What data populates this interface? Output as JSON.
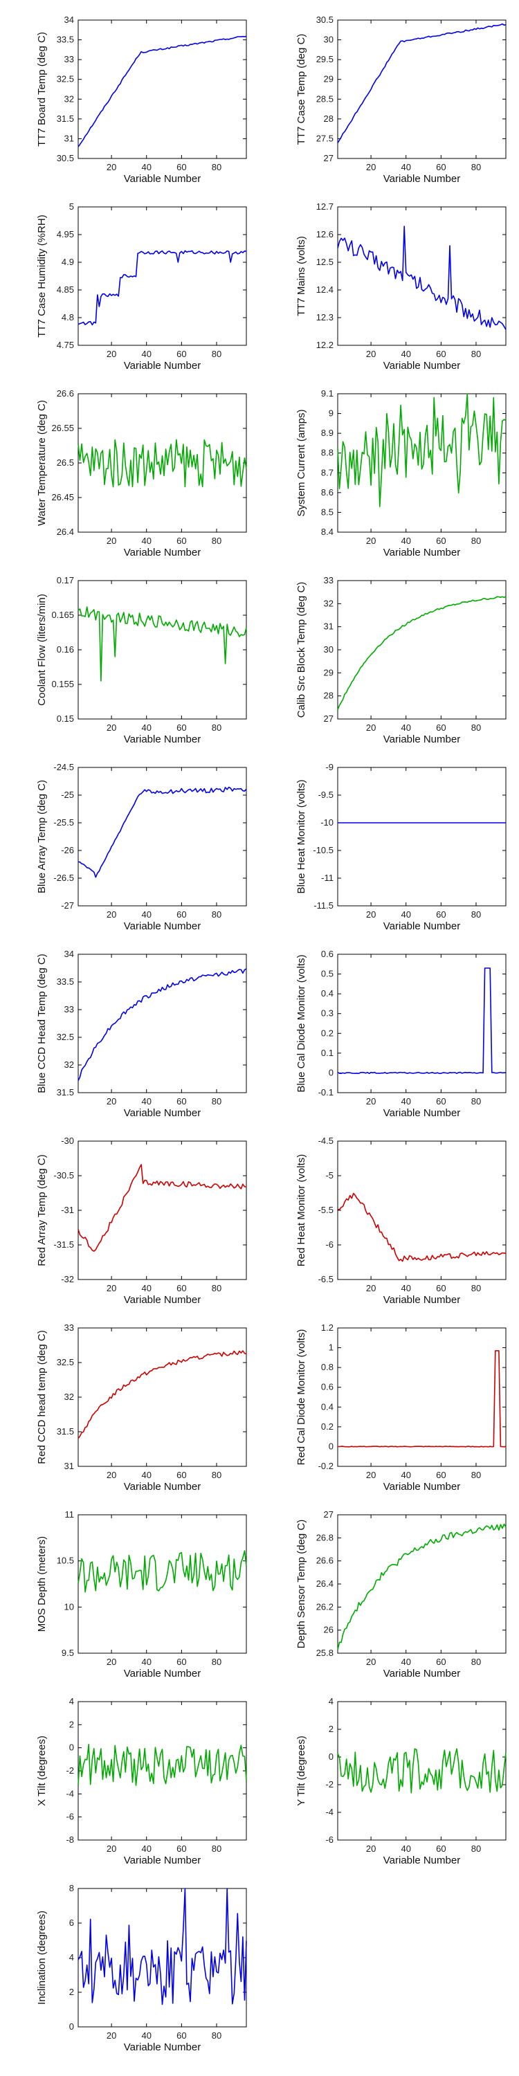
{
  "chart_data": [
    {
      "type": "line",
      "ylabel": "TT7 Board Temp (deg C)",
      "xlabel": "Variable Number",
      "xlim": [
        1,
        97
      ],
      "ylim": [
        30.5,
        34
      ],
      "yticks": [
        30.5,
        31,
        31.5,
        32,
        32.5,
        33,
        33.5,
        34
      ],
      "xticks": [
        20,
        40,
        60,
        80
      ],
      "color": "#0000ee",
      "shape": "rise-plateau",
      "start": 30.8,
      "end": 33.6,
      "noise": 0.02,
      "x": [],
      "y": []
    },
    {
      "type": "line",
      "ylabel": "TT7 Case Temp (deg C)",
      "xlabel": "Variable Number",
      "xlim": [
        1,
        97
      ],
      "ylim": [
        27,
        30.5
      ],
      "yticks": [
        27,
        27.5,
        28,
        28.5,
        29,
        29.5,
        30,
        30.5
      ],
      "xticks": [
        20,
        40,
        60,
        80
      ],
      "color": "#0000ee",
      "shape": "rise-plateau",
      "start": 27.4,
      "end": 30.4,
      "noise": 0.02,
      "x": [],
      "y": []
    },
    {
      "type": "line",
      "ylabel": "TT7 Case Humidity (%RH)",
      "xlabel": "Variable Number",
      "xlim": [
        1,
        97
      ],
      "ylim": [
        4.75,
        5
      ],
      "yticks": [
        4.75,
        4.8,
        4.85,
        4.9,
        4.95,
        5
      ],
      "xticks": [
        20,
        40,
        60,
        80
      ],
      "color": "#0000ee",
      "shape": "step-humidity",
      "start": 4.78,
      "end": 4.92,
      "noise": 0.003,
      "x": [],
      "y": []
    },
    {
      "type": "line",
      "ylabel": "TT7 Mains  (volts)",
      "xlabel": "Variable Number",
      "xlim": [
        1,
        97
      ],
      "ylim": [
        12.2,
        12.7
      ],
      "yticks": [
        12.2,
        12.3,
        12.4,
        12.5,
        12.6,
        12.7
      ],
      "xticks": [
        20,
        40,
        60,
        80
      ],
      "color": "#0000ee",
      "shape": "mains",
      "start": 12.58,
      "end": 12.25,
      "noise": 0.02,
      "x": [],
      "y": []
    },
    {
      "type": "line",
      "ylabel": "Water Temperature (deg C)",
      "xlabel": "Variable Number",
      "xlim": [
        1,
        97
      ],
      "ylim": [
        26.4,
        26.6
      ],
      "yticks": [
        26.4,
        26.45,
        26.5,
        26.55,
        26.6
      ],
      "xticks": [
        20,
        40,
        60,
        80
      ],
      "color": "#00aa00",
      "shape": "noise",
      "start": 26.5,
      "end": 26.5,
      "noise": 0.035,
      "x": [],
      "y": []
    },
    {
      "type": "line",
      "ylabel": "System Current (amps)",
      "xlabel": "Variable Number",
      "xlim": [
        1,
        97
      ],
      "ylim": [
        8.4,
        9.1
      ],
      "yticks": [
        8.4,
        8.5,
        8.6,
        8.7,
        8.8,
        8.9,
        9,
        9.1
      ],
      "xticks": [
        20,
        40,
        60,
        80
      ],
      "color": "#00aa00",
      "shape": "current",
      "start": 8.75,
      "end": 8.9,
      "noise": 0.15,
      "x": [],
      "y": []
    },
    {
      "type": "line",
      "ylabel": "Coolant Flow (liters/min)",
      "xlabel": "Variable Number",
      "xlim": [
        1,
        97
      ],
      "ylim": [
        0.15,
        0.17
      ],
      "yticks": [
        0.15,
        0.155,
        0.16,
        0.165,
        0.17
      ],
      "xticks": [
        20,
        40,
        60,
        80
      ],
      "color": "#00aa00",
      "shape": "flow",
      "start": 0.1655,
      "end": 0.1625,
      "noise": 0.0009,
      "x": [],
      "y": []
    },
    {
      "type": "line",
      "ylabel": "Calib Src Block Temp (deg C)",
      "xlabel": "Variable Number",
      "xlim": [
        1,
        97
      ],
      "ylim": [
        27,
        33
      ],
      "yticks": [
        27,
        28,
        29,
        30,
        31,
        32,
        33
      ],
      "xticks": [
        20,
        40,
        60,
        80
      ],
      "color": "#00aa00",
      "shape": "rise-smooth",
      "start": 27.4,
      "end": 32.3,
      "noise": 0.04,
      "x": [],
      "y": []
    },
    {
      "type": "line",
      "ylabel": "Blue Array Temp (deg C)",
      "xlabel": "Variable Number",
      "xlim": [
        1,
        97
      ],
      "ylim": [
        -27,
        -24.5
      ],
      "yticks": [
        -27,
        -26.5,
        -26,
        -25.5,
        -25,
        -24.5
      ],
      "xticks": [
        20,
        40,
        60,
        80
      ],
      "color": "#0000ee",
      "shape": "array-blue",
      "start": -26.2,
      "end": -24.85,
      "noise": 0.03,
      "x": [],
      "y": []
    },
    {
      "type": "line",
      "ylabel": "Blue Heat Monitor (volts)",
      "xlabel": "Variable Number",
      "xlim": [
        1,
        97
      ],
      "ylim": [
        -11.5,
        -9
      ],
      "yticks": [
        -11.5,
        -11,
        -10.5,
        -10,
        -9.5,
        -9
      ],
      "xticks": [
        20,
        40,
        60,
        80
      ],
      "color": "#0000ee",
      "shape": "flat",
      "start": -10,
      "end": -10,
      "noise": 0,
      "x": [],
      "y": []
    },
    {
      "type": "line",
      "ylabel": "Blue CCD Head Temp (deg C)",
      "xlabel": "Variable Number",
      "xlim": [
        1,
        97
      ],
      "ylim": [
        31.5,
        34
      ],
      "yticks": [
        31.5,
        32,
        32.5,
        33,
        33.5,
        34
      ],
      "xticks": [
        20,
        40,
        60,
        80
      ],
      "color": "#0000ee",
      "shape": "rise-smooth",
      "start": 31.75,
      "end": 33.7,
      "noise": 0.04,
      "x": [],
      "y": []
    },
    {
      "type": "line",
      "ylabel": "Blue Cal Diode Monitor (volts)",
      "xlabel": "Variable Number",
      "xlim": [
        1,
        97
      ],
      "ylim": [
        -0.1,
        0.6
      ],
      "yticks": [
        -0.1,
        0,
        0.1,
        0.2,
        0.3,
        0.4,
        0.5,
        0.6
      ],
      "xticks": [
        20,
        40,
        60,
        80
      ],
      "color": "#0000ee",
      "shape": "spike",
      "start": 0,
      "end": 0,
      "spike_at": [
        85,
        88
      ],
      "spike_value": 0.53,
      "noise": 0.003,
      "x": [],
      "y": []
    },
    {
      "type": "line",
      "ylabel": "Red Array Temp (deg C)",
      "xlabel": "Variable Number",
      "xlim": [
        1,
        97
      ],
      "ylim": [
        -32,
        -30
      ],
      "yticks": [
        -32,
        -31.5,
        -31,
        -30.5,
        -30
      ],
      "xticks": [
        20,
        40,
        60,
        80
      ],
      "color": "#cc0000",
      "shape": "array-red",
      "start": -31.3,
      "end": -30.7,
      "noise": 0.04,
      "x": [],
      "y": []
    },
    {
      "type": "line",
      "ylabel": "Red Heat Monitor (volts)",
      "xlabel": "Variable Number",
      "xlim": [
        1,
        97
      ],
      "ylim": [
        -6.5,
        -4.5
      ],
      "yticks": [
        -6.5,
        -6,
        -5.5,
        -5,
        -4.5
      ],
      "xticks": [
        20,
        40,
        60,
        80
      ],
      "color": "#cc0000",
      "shape": "heat-red",
      "start": -5.5,
      "end": -6.1,
      "noise": 0.04,
      "x": [],
      "y": []
    },
    {
      "type": "line",
      "ylabel": "Red CCD head temp (deg C)",
      "xlabel": "Variable Number",
      "xlim": [
        1,
        97
      ],
      "ylim": [
        31,
        33
      ],
      "yticks": [
        31,
        31.5,
        32,
        32.5,
        33
      ],
      "xticks": [
        20,
        40,
        60,
        80
      ],
      "color": "#cc0000",
      "shape": "rise-smooth",
      "start": 31.4,
      "end": 32.65,
      "noise": 0.03,
      "x": [],
      "y": []
    },
    {
      "type": "line",
      "ylabel": "Red Cal Diode Monitor (volts)",
      "xlabel": "Variable Number",
      "xlim": [
        1,
        97
      ],
      "ylim": [
        -0.2,
        1.2
      ],
      "yticks": [
        -0.2,
        0,
        0.2,
        0.4,
        0.6,
        0.8,
        1,
        1.2
      ],
      "xticks": [
        20,
        40,
        60,
        80
      ],
      "color": "#cc0000",
      "shape": "spike",
      "start": 0,
      "end": 0,
      "spike_at": [
        91,
        93
      ],
      "spike_value": 0.97,
      "noise": 0.003,
      "x": [],
      "y": []
    },
    {
      "type": "line",
      "ylabel": "MOS Depth  (meters)",
      "xlabel": "Variable Number",
      "xlim": [
        1,
        97
      ],
      "ylim": [
        9.5,
        11
      ],
      "yticks": [
        9.5,
        10,
        10.5,
        11
      ],
      "xticks": [
        20,
        40,
        60,
        80
      ],
      "color": "#00aa00",
      "shape": "noise",
      "start": 10.35,
      "end": 10.4,
      "noise": 0.22,
      "x": [],
      "y": []
    },
    {
      "type": "line",
      "ylabel": "Depth Sensor Temp (deg C)",
      "xlabel": "Variable Number",
      "xlim": [
        1,
        97
      ],
      "ylim": [
        25.8,
        27
      ],
      "yticks": [
        25.8,
        26,
        26.2,
        26.4,
        26.6,
        26.8,
        27
      ],
      "xticks": [
        20,
        40,
        60,
        80
      ],
      "color": "#00aa00",
      "shape": "rise-smooth",
      "start": 25.85,
      "end": 26.9,
      "noise": 0.03,
      "x": [],
      "y": []
    },
    {
      "type": "line",
      "ylabel": "X Tilt  (degrees)",
      "xlabel": "Variable Number",
      "xlim": [
        1,
        97
      ],
      "ylim": [
        -8,
        4
      ],
      "yticks": [
        -8,
        -6,
        -4,
        -2,
        0,
        2,
        4
      ],
      "xticks": [
        20,
        40,
        60,
        80
      ],
      "color": "#00aa00",
      "shape": "noise",
      "start": -1.5,
      "end": -1.5,
      "noise": 1.8,
      "x": [],
      "y": []
    },
    {
      "type": "line",
      "ylabel": "Y Tilt  (degrees)",
      "xlabel": "Variable Number",
      "xlim": [
        1,
        97
      ],
      "ylim": [
        -6,
        4
      ],
      "yticks": [
        -6,
        -4,
        -2,
        0,
        2,
        4
      ],
      "xticks": [
        20,
        40,
        60,
        80
      ],
      "color": "#00aa00",
      "shape": "noise",
      "start": -1,
      "end": -1,
      "noise": 1.6,
      "x": [],
      "y": []
    },
    {
      "type": "line",
      "ylabel": "Inclination  (degrees)",
      "xlabel": "Variable Number",
      "xlim": [
        1,
        97
      ],
      "ylim": [
        0,
        8
      ],
      "yticks": [
        0,
        2,
        4,
        6,
        8
      ],
      "xticks": [
        20,
        40,
        60,
        80
      ],
      "color": "#0000ee",
      "shape": "incl",
      "start": 3,
      "end": 2.5,
      "noise": 1.7,
      "x": [],
      "y": []
    }
  ]
}
